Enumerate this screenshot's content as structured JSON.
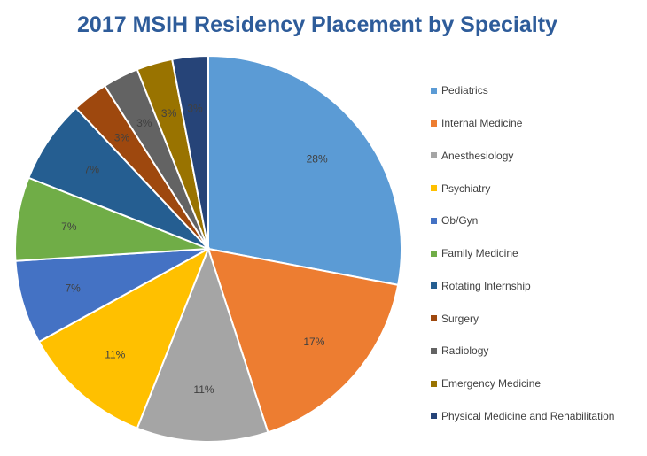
{
  "chart_data": {
    "type": "pie",
    "title": "2017 MSIH Residency Placement by Specialty",
    "legend_position": "right",
    "slices": [
      {
        "label": "Pediatrics",
        "value": 28,
        "value_label": "28%",
        "color": "#5B9BD5"
      },
      {
        "label": "Internal Medicine",
        "value": 17,
        "value_label": "17%",
        "color": "#ED7D31"
      },
      {
        "label": "Anesthesiology",
        "value": 11,
        "value_label": "11%",
        "color": "#A5A5A5"
      },
      {
        "label": "Psychiatry",
        "value": 11,
        "value_label": "11%",
        "color": "#FFC000"
      },
      {
        "label": "Ob/Gyn",
        "value": 7,
        "value_label": "7%",
        "color": "#4472C4"
      },
      {
        "label": "Family Medicine",
        "value": 7,
        "value_label": "7%",
        "color": "#70AD47"
      },
      {
        "label": "Rotating Internship",
        "value": 7,
        "value_label": "7%",
        "color": "#255E91"
      },
      {
        "label": "Surgery",
        "value": 3,
        "value_label": "3%",
        "color": "#9E480E"
      },
      {
        "label": "Radiology",
        "value": 3,
        "value_label": "3%",
        "color": "#636363"
      },
      {
        "label": "Emergency Medicine",
        "value": 3,
        "value_label": "3%",
        "color": "#997300"
      },
      {
        "label": "Physical Medicine and Rehabilitation",
        "value": 3,
        "value_label": "3%",
        "color": "#264478"
      }
    ]
  }
}
